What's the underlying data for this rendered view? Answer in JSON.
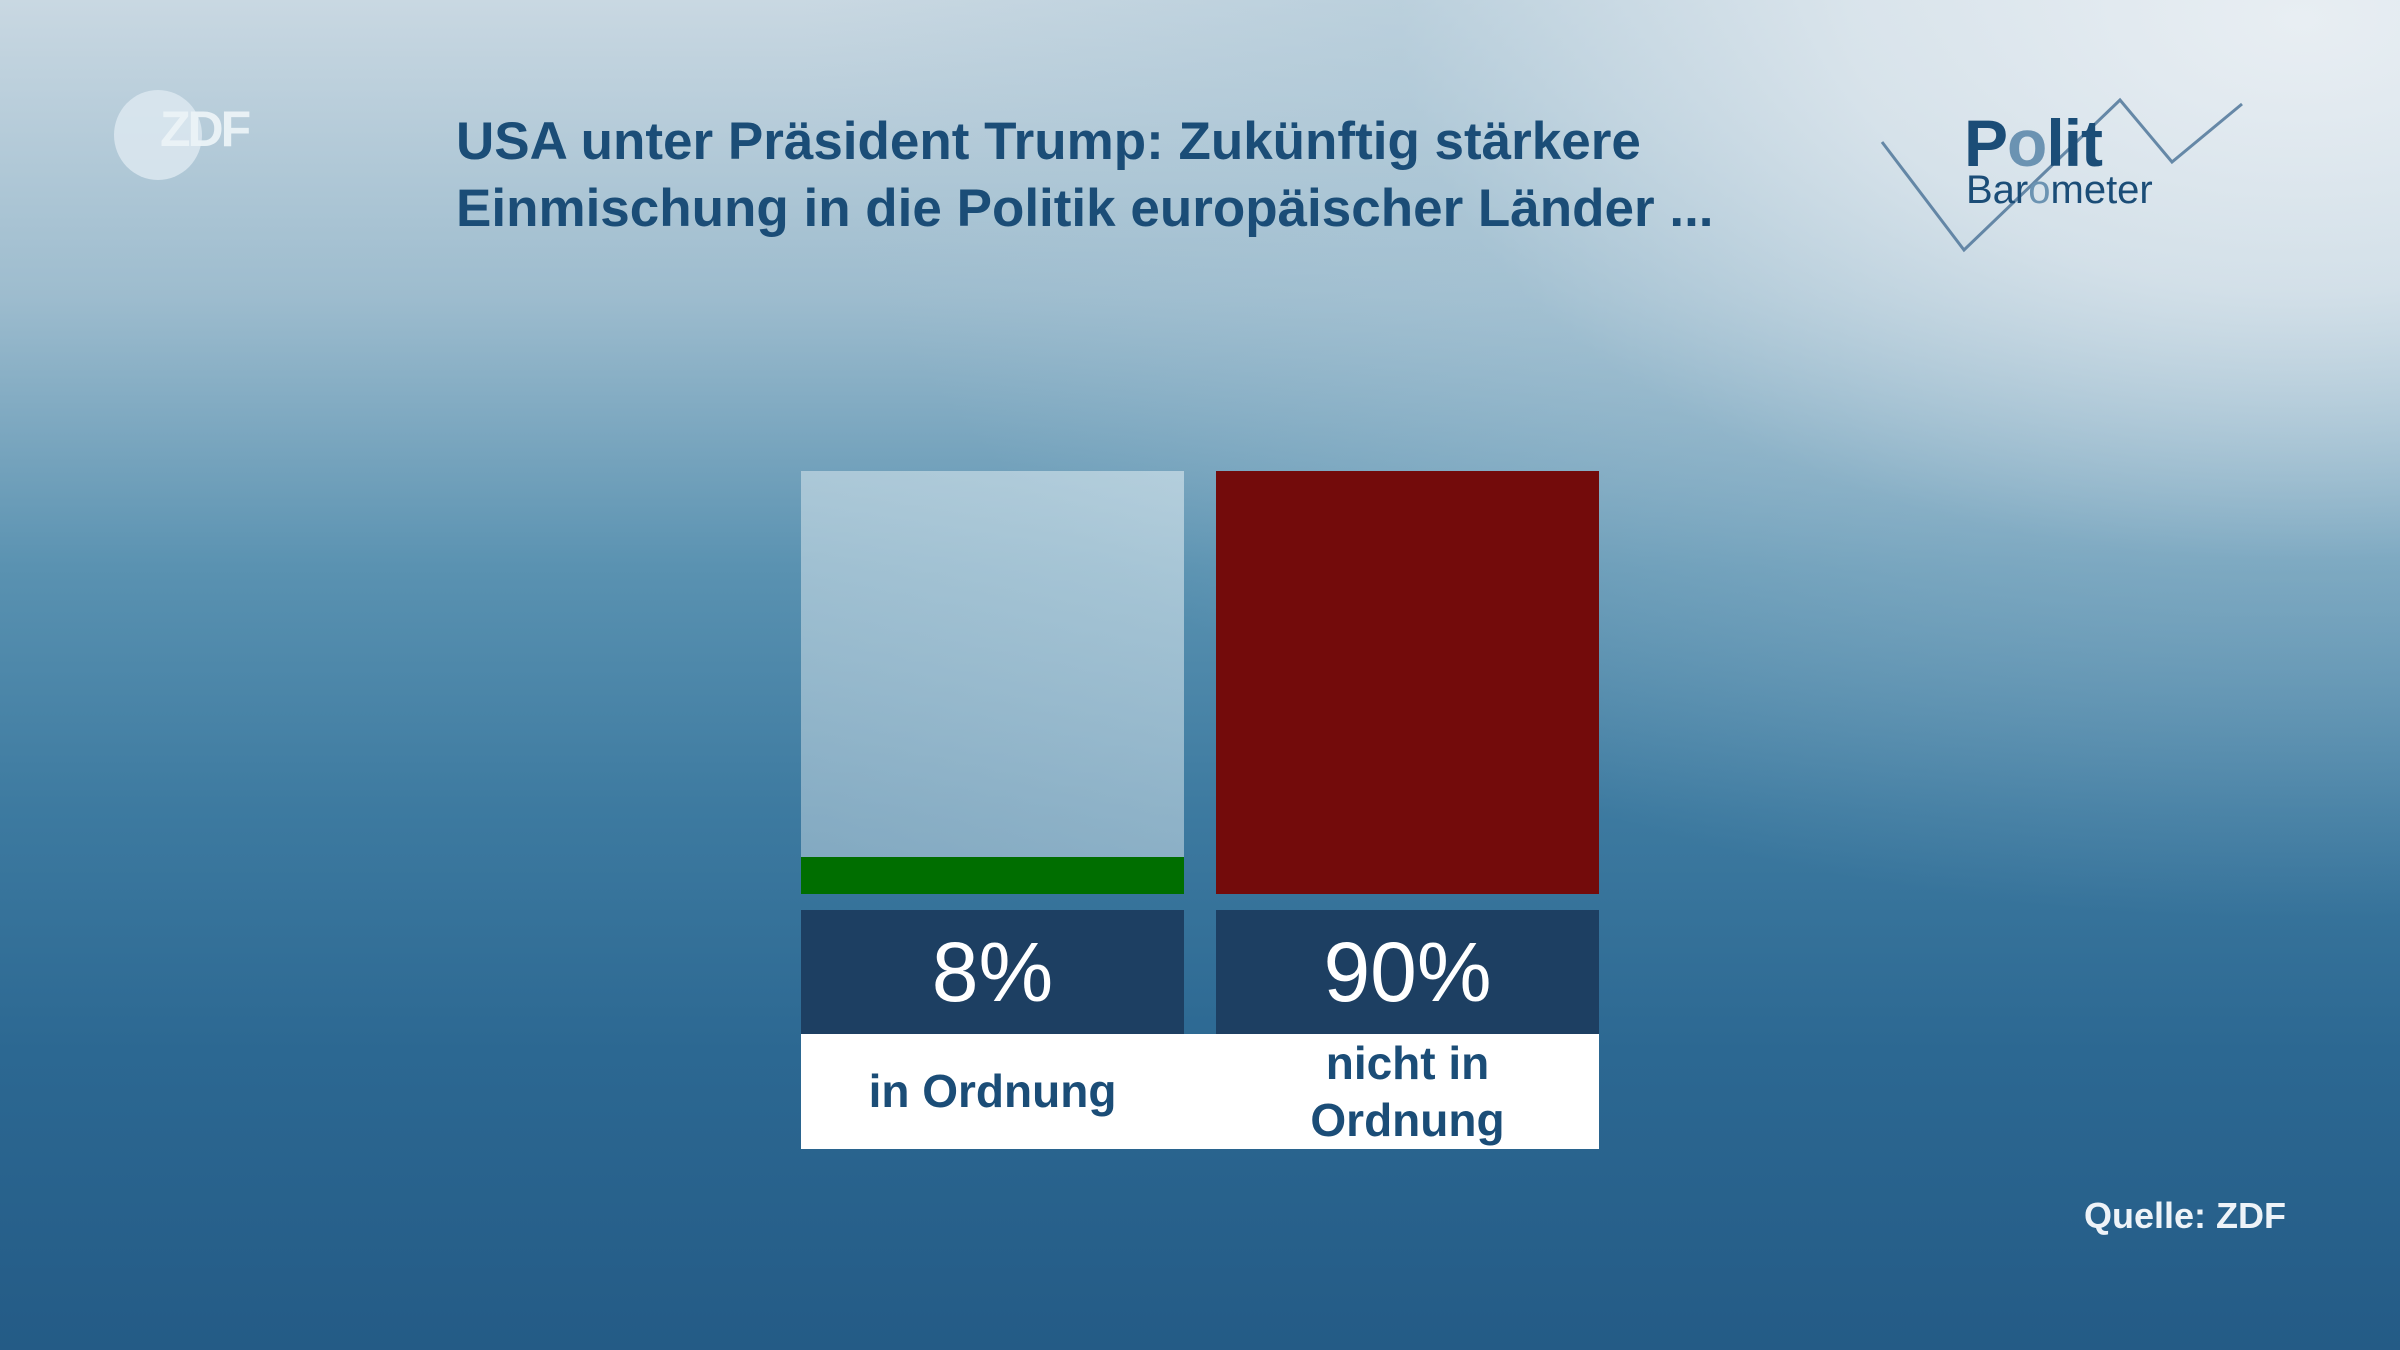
{
  "branding": {
    "broadcaster_logo": "ZDF",
    "program_logo": {
      "line1_prefix": "P",
      "line1_o": "o",
      "line1_suffix": "lit",
      "line2_prefix": "Bar",
      "line2_o": "o",
      "line2_suffix": "meter"
    }
  },
  "title": {
    "line1": "USA unter Präsident Trump: Zukünftig stärkere",
    "line2": "Einmischung in die Politik europäischer Länder ..."
  },
  "source": "Quelle: ZDF",
  "colors": {
    "title": "#1b4d77",
    "positive": "#006e00",
    "negative": "#730b0b",
    "value_box": "#1d3f62",
    "label_bg": "#ffffff",
    "bg_bottom": "#245b86",
    "bg_top_right": "#e8eef3"
  },
  "bars": [
    {
      "value_label": "8%",
      "category": "in Ordnung",
      "value": 8,
      "color": "#006e00"
    },
    {
      "value_label": "90%",
      "category": "nicht in Ordnung",
      "value": 90,
      "color": "#730b0b"
    }
  ],
  "chart_data": {
    "type": "bar",
    "title": "USA unter Präsident Trump: Zukünftig stärkere Einmischung in die Politik europäischer Länder ...",
    "categories": [
      "in Ordnung",
      "nicht in Ordnung"
    ],
    "values": [
      8,
      90
    ],
    "unit": "%",
    "colors": [
      "#006e00",
      "#730b0b"
    ],
    "xlabel": "",
    "ylabel": "",
    "ylim": [
      0,
      100
    ],
    "grid": false,
    "legend": "none",
    "source": "Quelle: ZDF"
  }
}
